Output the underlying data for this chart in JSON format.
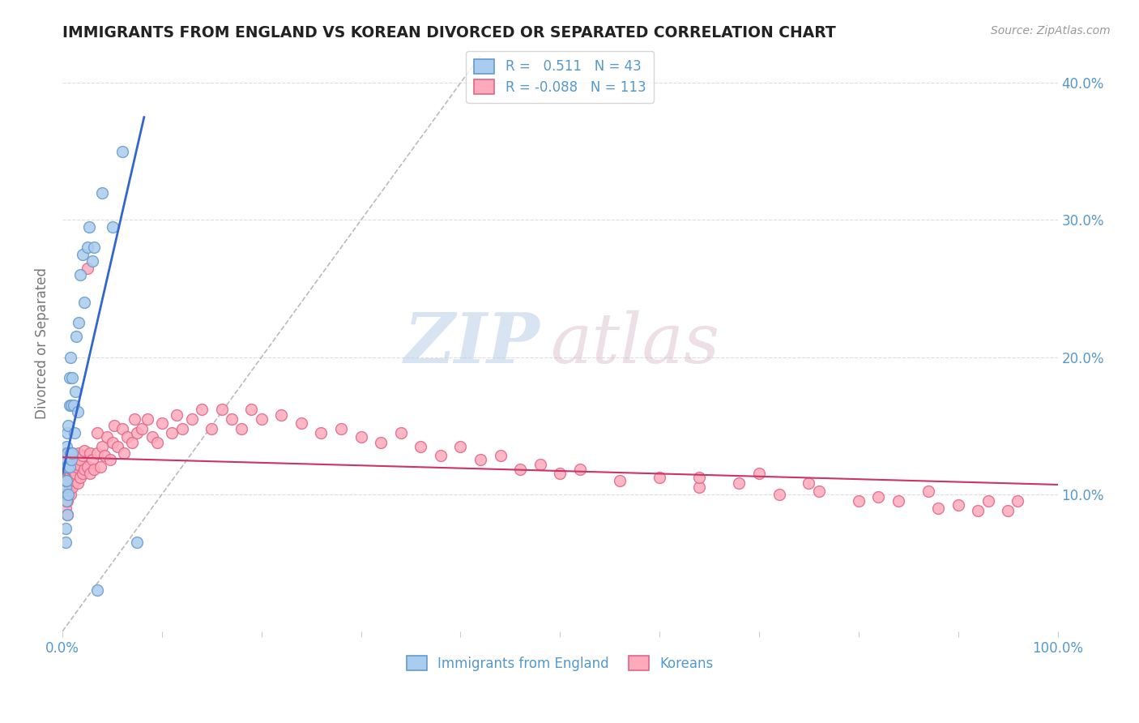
{
  "title": "IMMIGRANTS FROM ENGLAND VS KOREAN DIVORCED OR SEPARATED CORRELATION CHART",
  "source_text": "Source: ZipAtlas.com",
  "ylabel": "Divorced or Separated",
  "xlim": [
    0,
    1.0
  ],
  "ylim": [
    0.0,
    0.42
  ],
  "xtick_pos": [
    0.0,
    0.1,
    0.2,
    0.3,
    0.4,
    0.5,
    0.6,
    0.7,
    0.8,
    0.9,
    1.0
  ],
  "xtick_labels": [
    "0.0%",
    "",
    "",
    "",
    "",
    "",
    "",
    "",
    "",
    "",
    "100.0%"
  ],
  "ytick_pos": [
    0.0,
    0.1,
    0.2,
    0.3,
    0.4
  ],
  "ytick_labels_right": [
    "",
    "10.0%",
    "20.0%",
    "30.0%",
    "40.0%"
  ],
  "background_color": "#ffffff",
  "legend_R1": "0.511",
  "legend_N1": "43",
  "legend_R2": "-0.088",
  "legend_N2": "113",
  "series1_face": "#aaccee",
  "series1_edge": "#6699cc",
  "series2_face": "#ffaabb",
  "series2_edge": "#dd6688",
  "line1_color": "#3366cc",
  "line2_color": "#cc3366",
  "grid_color": "#dddddd",
  "title_color": "#222222",
  "axis_label_color": "#5599cc",
  "ylabel_color": "#777777",
  "source_color": "#999999",
  "blue_line_x": [
    0.0,
    0.082
  ],
  "blue_line_y": [
    0.115,
    0.375
  ],
  "pink_line_x": [
    0.0,
    1.0
  ],
  "pink_line_y": [
    0.127,
    0.107
  ],
  "diag_line_x": [
    0.0,
    0.42
  ],
  "diag_line_y": [
    0.0,
    0.42
  ],
  "blue_x": [
    0.003,
    0.003,
    0.003,
    0.003,
    0.003,
    0.003,
    0.004,
    0.004,
    0.004,
    0.004,
    0.005,
    0.005,
    0.005,
    0.005,
    0.006,
    0.006,
    0.007,
    0.007,
    0.007,
    0.008,
    0.008,
    0.009,
    0.009,
    0.01,
    0.01,
    0.011,
    0.012,
    0.013,
    0.014,
    0.015,
    0.016,
    0.018,
    0.02,
    0.022,
    0.025,
    0.027,
    0.03,
    0.032,
    0.035,
    0.04,
    0.05,
    0.06,
    0.075
  ],
  "blue_y": [
    0.065,
    0.075,
    0.1,
    0.105,
    0.11,
    0.125,
    0.095,
    0.11,
    0.12,
    0.135,
    0.085,
    0.12,
    0.13,
    0.145,
    0.1,
    0.15,
    0.12,
    0.165,
    0.185,
    0.13,
    0.2,
    0.125,
    0.165,
    0.13,
    0.185,
    0.165,
    0.145,
    0.175,
    0.215,
    0.16,
    0.225,
    0.26,
    0.275,
    0.24,
    0.28,
    0.295,
    0.27,
    0.28,
    0.03,
    0.32,
    0.295,
    0.35,
    0.065
  ],
  "pink_x": [
    0.003,
    0.003,
    0.003,
    0.003,
    0.003,
    0.004,
    0.004,
    0.004,
    0.005,
    0.005,
    0.005,
    0.005,
    0.005,
    0.006,
    0.006,
    0.006,
    0.007,
    0.007,
    0.007,
    0.008,
    0.008,
    0.008,
    0.009,
    0.009,
    0.01,
    0.01,
    0.01,
    0.012,
    0.012,
    0.013,
    0.014,
    0.015,
    0.015,
    0.016,
    0.018,
    0.018,
    0.02,
    0.02,
    0.022,
    0.022,
    0.025,
    0.025,
    0.028,
    0.028,
    0.03,
    0.032,
    0.035,
    0.035,
    0.038,
    0.04,
    0.042,
    0.045,
    0.048,
    0.05,
    0.052,
    0.055,
    0.06,
    0.062,
    0.065,
    0.07,
    0.072,
    0.075,
    0.08,
    0.085,
    0.09,
    0.095,
    0.1,
    0.11,
    0.115,
    0.12,
    0.13,
    0.14,
    0.15,
    0.16,
    0.17,
    0.18,
    0.19,
    0.2,
    0.22,
    0.24,
    0.26,
    0.28,
    0.3,
    0.32,
    0.34,
    0.36,
    0.38,
    0.4,
    0.42,
    0.44,
    0.46,
    0.48,
    0.5,
    0.52,
    0.56,
    0.6,
    0.64,
    0.68,
    0.72,
    0.76,
    0.8,
    0.84,
    0.88,
    0.92,
    0.96,
    0.64,
    0.7,
    0.75,
    0.82,
    0.87,
    0.9,
    0.93,
    0.95
  ],
  "pink_y": [
    0.09,
    0.1,
    0.11,
    0.12,
    0.13,
    0.095,
    0.11,
    0.125,
    0.085,
    0.095,
    0.11,
    0.12,
    0.13,
    0.1,
    0.115,
    0.125,
    0.105,
    0.115,
    0.13,
    0.1,
    0.115,
    0.128,
    0.108,
    0.118,
    0.105,
    0.118,
    0.13,
    0.11,
    0.125,
    0.115,
    0.12,
    0.108,
    0.122,
    0.13,
    0.112,
    0.125,
    0.115,
    0.128,
    0.118,
    0.132,
    0.12,
    0.265,
    0.115,
    0.13,
    0.125,
    0.118,
    0.13,
    0.145,
    0.12,
    0.135,
    0.128,
    0.142,
    0.125,
    0.138,
    0.15,
    0.135,
    0.148,
    0.13,
    0.142,
    0.138,
    0.155,
    0.145,
    0.148,
    0.155,
    0.142,
    0.138,
    0.152,
    0.145,
    0.158,
    0.148,
    0.155,
    0.162,
    0.148,
    0.162,
    0.155,
    0.148,
    0.162,
    0.155,
    0.158,
    0.152,
    0.145,
    0.148,
    0.142,
    0.138,
    0.145,
    0.135,
    0.128,
    0.135,
    0.125,
    0.128,
    0.118,
    0.122,
    0.115,
    0.118,
    0.11,
    0.112,
    0.105,
    0.108,
    0.1,
    0.102,
    0.095,
    0.095,
    0.09,
    0.088,
    0.095,
    0.112,
    0.115,
    0.108,
    0.098,
    0.102,
    0.092,
    0.095,
    0.088
  ]
}
